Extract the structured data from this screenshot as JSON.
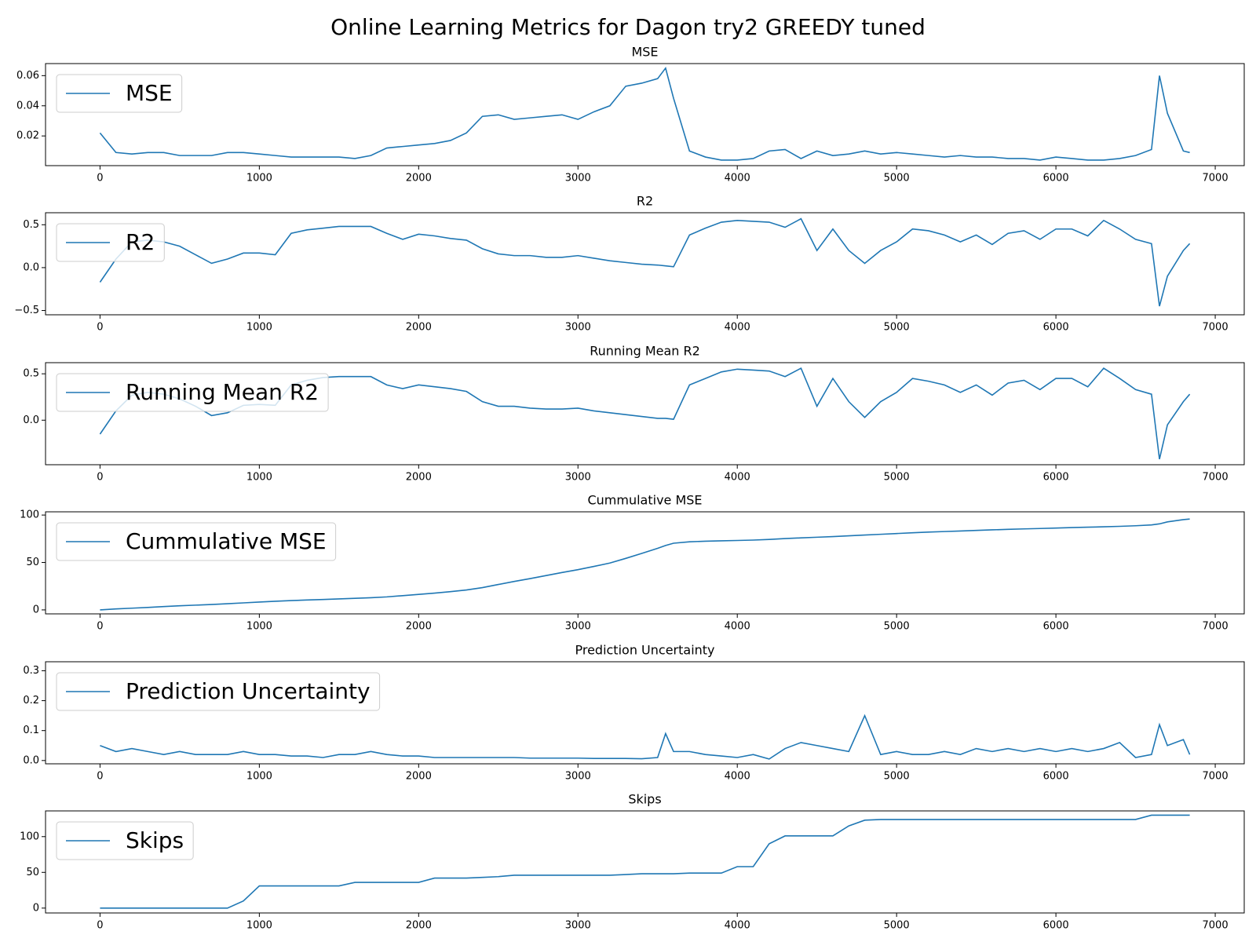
{
  "title": "Online Learning Metrics for Dagon try2 GREEDY tuned",
  "chart_data": [
    {
      "type": "line",
      "title": "MSE",
      "legend": "upper left",
      "x": [
        0,
        100,
        200,
        300,
        400,
        500,
        600,
        700,
        800,
        900,
        1000,
        1100,
        1200,
        1300,
        1400,
        1500,
        1600,
        1700,
        1800,
        1900,
        2000,
        2100,
        2200,
        2300,
        2400,
        2500,
        2600,
        2700,
        2800,
        2900,
        3000,
        3100,
        3200,
        3300,
        3400,
        3500,
        3550,
        3600,
        3700,
        3800,
        3900,
        4000,
        4100,
        4200,
        4300,
        4400,
        4500,
        4600,
        4700,
        4800,
        4900,
        5000,
        5100,
        5200,
        5300,
        5400,
        5500,
        5600,
        5700,
        5800,
        5900,
        6000,
        6100,
        6200,
        6300,
        6400,
        6500,
        6600,
        6650,
        6700,
        6800,
        6840
      ],
      "series": [
        {
          "name": "MSE",
          "color": "#1f77b4",
          "values": [
            0.022,
            0.009,
            0.008,
            0.009,
            0.009,
            0.007,
            0.007,
            0.007,
            0.009,
            0.009,
            0.008,
            0.007,
            0.006,
            0.006,
            0.006,
            0.006,
            0.005,
            0.007,
            0.012,
            0.013,
            0.014,
            0.015,
            0.017,
            0.022,
            0.033,
            0.034,
            0.031,
            0.032,
            0.033,
            0.034,
            0.031,
            0.036,
            0.04,
            0.053,
            0.055,
            0.058,
            0.065,
            0.045,
            0.01,
            0.006,
            0.004,
            0.004,
            0.005,
            0.01,
            0.011,
            0.005,
            0.01,
            0.007,
            0.008,
            0.01,
            0.008,
            0.009,
            0.008,
            0.007,
            0.006,
            0.007,
            0.006,
            0.006,
            0.005,
            0.005,
            0.004,
            0.006,
            0.005,
            0.004,
            0.004,
            0.005,
            0.007,
            0.011,
            0.06,
            0.035,
            0.01,
            0.009
          ]
        }
      ],
      "xlim": [
        -342,
        7182
      ],
      "ylim": [
        0.0003,
        0.068
      ],
      "xticks": [
        0,
        1000,
        2000,
        3000,
        4000,
        5000,
        6000,
        7000
      ],
      "yticks": [
        0.02,
        0.04,
        0.06
      ]
    },
    {
      "type": "line",
      "title": "R2",
      "legend": "upper left",
      "x": [
        0,
        100,
        200,
        300,
        400,
        500,
        600,
        700,
        800,
        900,
        1000,
        1100,
        1200,
        1300,
        1400,
        1500,
        1600,
        1700,
        1800,
        1900,
        2000,
        2100,
        2200,
        2300,
        2400,
        2500,
        2600,
        2700,
        2800,
        2900,
        3000,
        3100,
        3200,
        3300,
        3400,
        3500,
        3550,
        3600,
        3700,
        3800,
        3900,
        4000,
        4100,
        4200,
        4300,
        4400,
        4500,
        4600,
        4700,
        4800,
        4900,
        5000,
        5100,
        5200,
        5300,
        5400,
        5500,
        5600,
        5700,
        5800,
        5900,
        6000,
        6100,
        6200,
        6300,
        6400,
        6500,
        6600,
        6650,
        6700,
        6800,
        6840
      ],
      "series": [
        {
          "name": "R2",
          "color": "#1f77b4",
          "values": [
            -0.17,
            0.1,
            0.3,
            0.32,
            0.3,
            0.25,
            0.15,
            0.05,
            0.1,
            0.17,
            0.17,
            0.15,
            0.4,
            0.44,
            0.46,
            0.48,
            0.48,
            0.48,
            0.4,
            0.33,
            0.39,
            0.37,
            0.34,
            0.32,
            0.22,
            0.16,
            0.14,
            0.14,
            0.12,
            0.12,
            0.14,
            0.11,
            0.08,
            0.06,
            0.04,
            0.03,
            0.02,
            0.01,
            0.38,
            0.46,
            0.53,
            0.55,
            0.54,
            0.53,
            0.47,
            0.57,
            0.2,
            0.45,
            0.2,
            0.05,
            0.2,
            0.3,
            0.45,
            0.43,
            0.38,
            0.3,
            0.38,
            0.27,
            0.4,
            0.43,
            0.33,
            0.45,
            0.45,
            0.37,
            0.55,
            0.45,
            0.33,
            0.28,
            -0.45,
            -0.1,
            0.2,
            0.28
          ]
        }
      ],
      "xlim": [
        -342,
        7182
      ],
      "ylim": [
        -0.55,
        0.64
      ],
      "xticks": [
        0,
        1000,
        2000,
        3000,
        4000,
        5000,
        6000,
        7000
      ],
      "yticks": [
        {
          "value": -0.5,
          "label": "−0.5"
        },
        {
          "value": 0,
          "label": "0.0"
        },
        0.5
      ]
    },
    {
      "type": "line",
      "title": "Running Mean R2",
      "legend": "upper left",
      "x": [
        0,
        100,
        200,
        300,
        400,
        500,
        600,
        700,
        800,
        900,
        1000,
        1100,
        1200,
        1300,
        1400,
        1500,
        1600,
        1700,
        1800,
        1900,
        2000,
        2100,
        2200,
        2300,
        2400,
        2500,
        2600,
        2700,
        2800,
        2900,
        3000,
        3100,
        3200,
        3300,
        3400,
        3500,
        3550,
        3600,
        3700,
        3800,
        3900,
        4000,
        4100,
        4200,
        4300,
        4400,
        4500,
        4600,
        4700,
        4800,
        4900,
        5000,
        5100,
        5200,
        5300,
        5400,
        5500,
        5600,
        5700,
        5800,
        5900,
        6000,
        6100,
        6200,
        6300,
        6400,
        6500,
        6600,
        6650,
        6700,
        6800,
        6840
      ],
      "series": [
        {
          "name": "Running Mean R2",
          "color": "#1f77b4",
          "values": [
            -0.15,
            0.1,
            0.27,
            0.3,
            0.28,
            0.23,
            0.15,
            0.05,
            0.08,
            0.16,
            0.17,
            0.16,
            0.38,
            0.43,
            0.46,
            0.47,
            0.47,
            0.47,
            0.38,
            0.34,
            0.38,
            0.36,
            0.34,
            0.31,
            0.2,
            0.15,
            0.15,
            0.13,
            0.12,
            0.12,
            0.13,
            0.1,
            0.08,
            0.06,
            0.04,
            0.02,
            0.02,
            0.01,
            0.38,
            0.45,
            0.52,
            0.55,
            0.54,
            0.53,
            0.47,
            0.56,
            0.15,
            0.45,
            0.2,
            0.03,
            0.2,
            0.3,
            0.45,
            0.42,
            0.38,
            0.3,
            0.38,
            0.27,
            0.4,
            0.43,
            0.33,
            0.45,
            0.45,
            0.36,
            0.56,
            0.45,
            0.33,
            0.28,
            -0.42,
            -0.05,
            0.2,
            0.28
          ]
        }
      ],
      "xlim": [
        -342,
        7182
      ],
      "ylim": [
        -0.48,
        0.62
      ],
      "xticks": [
        0,
        1000,
        2000,
        3000,
        4000,
        5000,
        6000,
        7000
      ],
      "yticks": [
        {
          "value": 0,
          "label": "0.0"
        },
        0.5
      ]
    },
    {
      "type": "line",
      "title": "Cummulative MSE",
      "legend": "upper left",
      "x": [
        0,
        100,
        200,
        300,
        400,
        500,
        600,
        700,
        800,
        900,
        1000,
        1100,
        1200,
        1300,
        1400,
        1500,
        1600,
        1700,
        1800,
        1900,
        2000,
        2100,
        2200,
        2300,
        2400,
        2500,
        2600,
        2700,
        2800,
        2900,
        3000,
        3100,
        3200,
        3300,
        3400,
        3500,
        3550,
        3600,
        3700,
        3800,
        3900,
        4000,
        4100,
        4200,
        4300,
        4400,
        4500,
        4600,
        4700,
        4800,
        4900,
        5000,
        5100,
        5200,
        5300,
        5400,
        5500,
        5600,
        5700,
        5800,
        5900,
        6000,
        6100,
        6200,
        6300,
        6400,
        6500,
        6600,
        6650,
        6700,
        6800,
        6840
      ],
      "series": [
        {
          "name": "Cummulative MSE",
          "color": "#1f77b4",
          "values": [
            0,
            1,
            1.8,
            2.6,
            3.5,
            4.3,
            5,
            5.7,
            6.5,
            7.4,
            8.3,
            9.1,
            9.8,
            10.4,
            11,
            11.6,
            12.2,
            12.8,
            13.7,
            15,
            16.3,
            17.7,
            19.2,
            21,
            23.5,
            26.8,
            30,
            33,
            36.2,
            39.4,
            42.4,
            45.8,
            49.4,
            54.3,
            59.5,
            64.9,
            67.9,
            70.3,
            71.8,
            72.4,
            72.8,
            73.2,
            73.6,
            74.3,
            75.2,
            75.9,
            76.6,
            77.3,
            78.1,
            78.9,
            79.7,
            80.5,
            81.3,
            82,
            82.6,
            83.2,
            83.8,
            84.4,
            84.9,
            85.4,
            85.8,
            86.3,
            86.8,
            87.2,
            87.6,
            88.1,
            88.7,
            89.6,
            90.7,
            92.8,
            95.2,
            95.8
          ]
        }
      ],
      "xlim": [
        -342,
        7182
      ],
      "ylim": [
        -4.2,
        103.4
      ],
      "xticks": [
        0,
        1000,
        2000,
        3000,
        4000,
        5000,
        6000,
        7000
      ],
      "yticks": [
        0,
        50,
        100
      ]
    },
    {
      "type": "line",
      "title": "Prediction Uncertainty",
      "legend": "upper left",
      "x": [
        0,
        100,
        200,
        300,
        400,
        500,
        600,
        700,
        800,
        900,
        1000,
        1100,
        1200,
        1300,
        1400,
        1500,
        1600,
        1700,
        1800,
        1900,
        2000,
        2100,
        2200,
        2300,
        2400,
        2500,
        2600,
        2700,
        2800,
        2900,
        3000,
        3100,
        3200,
        3300,
        3400,
        3500,
        3550,
        3600,
        3700,
        3800,
        3900,
        4000,
        4100,
        4200,
        4300,
        4400,
        4500,
        4600,
        4700,
        4800,
        4900,
        5000,
        5100,
        5200,
        5300,
        5400,
        5500,
        5600,
        5700,
        5800,
        5900,
        6000,
        6100,
        6200,
        6300,
        6400,
        6500,
        6600,
        6650,
        6700,
        6800,
        6840
      ],
      "series": [
        {
          "name": "Prediction Uncertainty",
          "color": "#1f77b4",
          "values": [
            0.05,
            0.03,
            0.04,
            0.03,
            0.02,
            0.03,
            0.02,
            0.02,
            0.02,
            0.03,
            0.02,
            0.02,
            0.015,
            0.015,
            0.01,
            0.02,
            0.02,
            0.03,
            0.02,
            0.015,
            0.015,
            0.01,
            0.01,
            0.01,
            0.01,
            0.01,
            0.01,
            0.008,
            0.008,
            0.008,
            0.008,
            0.007,
            0.007,
            0.007,
            0.006,
            0.01,
            0.09,
            0.03,
            0.03,
            0.02,
            0.015,
            0.01,
            0.02,
            0.005,
            0.04,
            0.06,
            0.05,
            0.04,
            0.03,
            0.15,
            0.02,
            0.03,
            0.02,
            0.02,
            0.03,
            0.02,
            0.04,
            0.03,
            0.04,
            0.03,
            0.04,
            0.03,
            0.04,
            0.03,
            0.04,
            0.06,
            0.01,
            0.02,
            0.12,
            0.05,
            0.07,
            0.02
          ]
        }
      ],
      "xlim": [
        -342,
        7182
      ],
      "ylim": [
        -0.011,
        0.33
      ],
      "xticks": [
        0,
        1000,
        2000,
        3000,
        4000,
        5000,
        6000,
        7000
      ],
      "yticks": [
        {
          "value": 0,
          "label": "0.0"
        },
        0.1,
        0.2,
        0.3
      ]
    },
    {
      "type": "line",
      "title": "Skips",
      "legend": "upper left",
      "x": [
        0,
        100,
        200,
        300,
        400,
        500,
        600,
        700,
        800,
        900,
        1000,
        1100,
        1200,
        1300,
        1400,
        1500,
        1600,
        1700,
        1800,
        1900,
        2000,
        2100,
        2200,
        2300,
        2400,
        2500,
        2600,
        2700,
        2800,
        2900,
        3000,
        3100,
        3200,
        3300,
        3400,
        3500,
        3550,
        3600,
        3700,
        3800,
        3900,
        4000,
        4100,
        4200,
        4300,
        4400,
        4500,
        4600,
        4700,
        4800,
        4900,
        5000,
        5100,
        5200,
        5300,
        5400,
        5500,
        5600,
        5700,
        5800,
        5900,
        6000,
        6100,
        6200,
        6300,
        6400,
        6500,
        6600,
        6650,
        6700,
        6800,
        6840
      ],
      "series": [
        {
          "name": "Skips",
          "color": "#1f77b4",
          "values": [
            0,
            0,
            0,
            0,
            0,
            0,
            0,
            0,
            0,
            10,
            31,
            31,
            31,
            31,
            31,
            31,
            36,
            36,
            36,
            36,
            36,
            42,
            42,
            42,
            43,
            44,
            46,
            46,
            46,
            46,
            46,
            46,
            46,
            47,
            48,
            48,
            48,
            48,
            49,
            49,
            49,
            58,
            58,
            90,
            101,
            101,
            101,
            101,
            115,
            123,
            124,
            124,
            124,
            124,
            124,
            124,
            124,
            124,
            124,
            124,
            124,
            124,
            124,
            124,
            124,
            124,
            124,
            130,
            130,
            130,
            130,
            130
          ]
        }
      ],
      "xlim": [
        -342,
        7182
      ],
      "ylim": [
        -6.8,
        136
      ],
      "xticks": [
        0,
        1000,
        2000,
        3000,
        4000,
        5000,
        6000,
        7000
      ],
      "yticks": [
        0,
        50,
        100
      ]
    }
  ]
}
